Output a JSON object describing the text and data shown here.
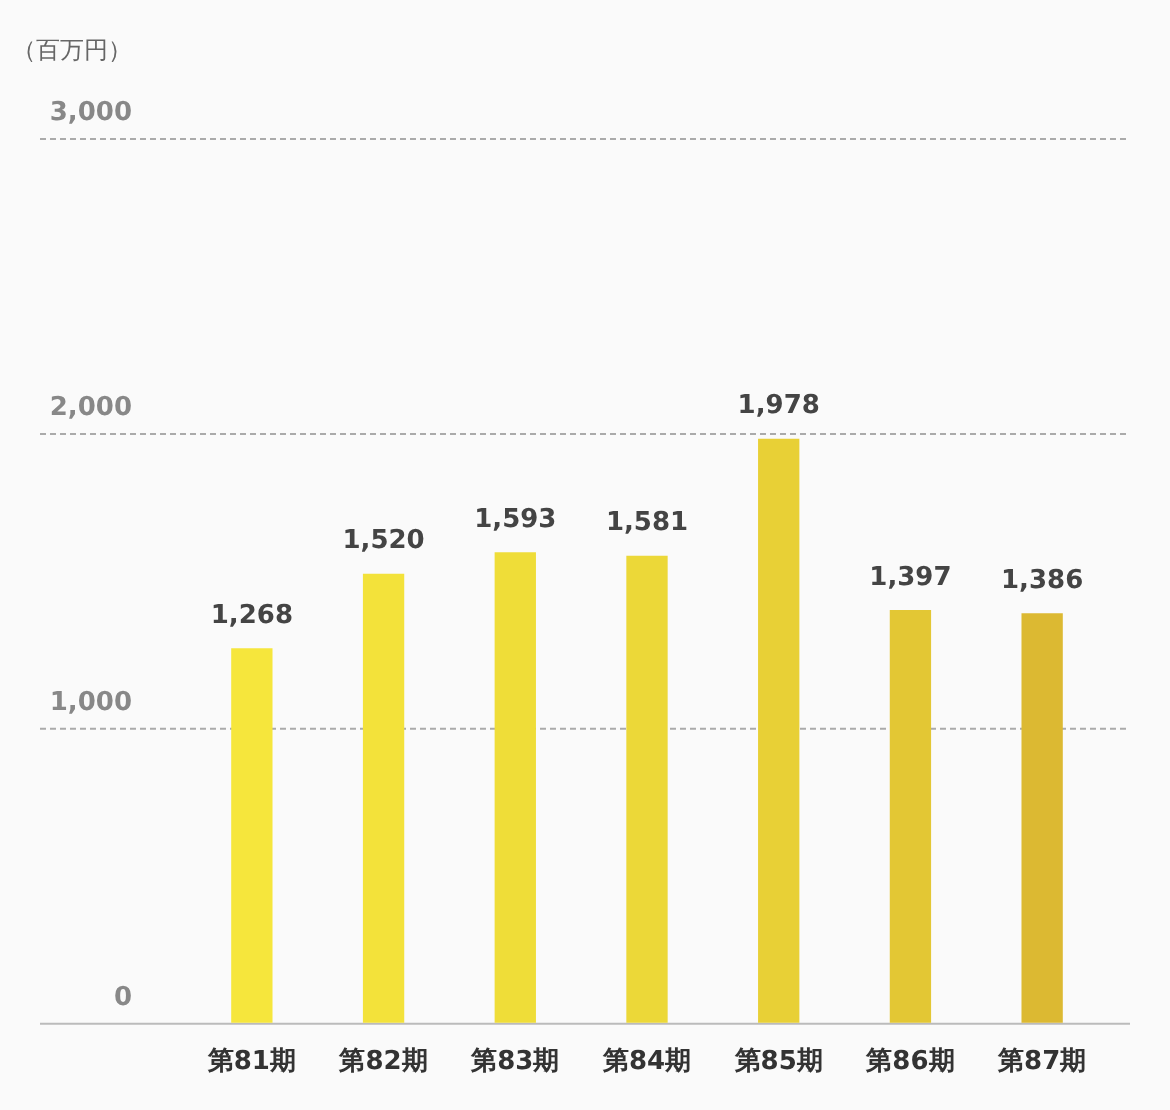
{
  "chart_data": {
    "type": "bar",
    "ylabel": "（百万円）",
    "categories": [
      "第81期",
      "第82期",
      "第83期",
      "第84期",
      "第85期",
      "第86期",
      "第87期"
    ],
    "values": [
      1268,
      1520,
      1593,
      1581,
      1978,
      1397,
      1386
    ],
    "colors": [
      "#f6e63c",
      "#f3e23a",
      "#efdd38",
      "#ecd838",
      "#e8d036",
      "#e3c734",
      "#dcb932"
    ],
    "ylim": [
      0,
      3000
    ],
    "yticks": [
      {
        "value": 0,
        "label": "0"
      },
      {
        "value": 1000,
        "label": "1,000"
      },
      {
        "value": 2000,
        "label": "2,000"
      },
      {
        "value": 3000,
        "label": "3,000"
      }
    ],
    "value_labels": [
      "1,268",
      "1,520",
      "1,593",
      "1,581",
      "1,978",
      "1,397",
      "1,386"
    ],
    "grid": "y"
  }
}
